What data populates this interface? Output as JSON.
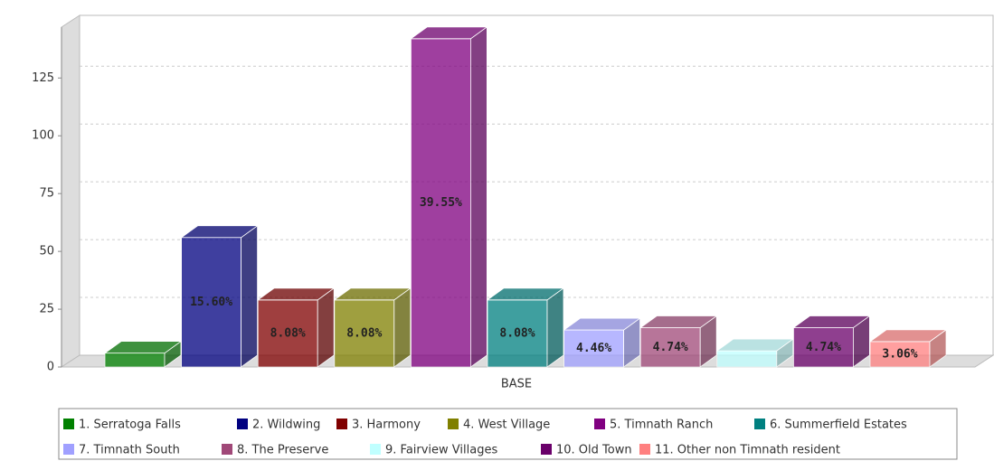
{
  "chart_data": {
    "type": "bar3d",
    "categories": [
      "BASE"
    ],
    "series": [
      {
        "name": "1. Serratoga Falls",
        "color": "#008000",
        "values": [
          6
        ]
      },
      {
        "name": "2. Wildwing",
        "color": "#000080",
        "values": [
          56
        ]
      },
      {
        "name": "3. Harmony",
        "color": "#800000",
        "values": [
          29
        ]
      },
      {
        "name": "4. West Village",
        "color": "#808000",
        "values": [
          29
        ]
      },
      {
        "name": "5. Timnath Ranch",
        "color": "#800080",
        "values": [
          142
        ]
      },
      {
        "name": "6. Summerfield Estates",
        "color": "#008080",
        "values": [
          29
        ]
      },
      {
        "name": "7. Timnath South",
        "color": "#a0a0ff",
        "values": [
          16
        ]
      },
      {
        "name": "8. The Preserve",
        "color": "#a04878",
        "values": [
          17
        ]
      },
      {
        "name": "9. Fairview Villages",
        "color": "#c0ffff",
        "values": [
          7
        ]
      },
      {
        "name": "10. Old Town",
        "color": "#6a006a",
        "values": [
          17
        ]
      },
      {
        "name": "11. Other non Timnath resident",
        "color": "#ff8080",
        "values": [
          11
        ]
      }
    ],
    "bar_labels": [
      null,
      "15.60%",
      "8.08%",
      "8.08%",
      "39.55%",
      "8.08%",
      "4.46%",
      "4.74%",
      null,
      "4.74%",
      "3.06%"
    ],
    "ylim": [
      0,
      147
    ],
    "yticks": [
      0,
      25,
      50,
      75,
      100,
      125
    ],
    "grid": true,
    "legend": "bottom"
  }
}
